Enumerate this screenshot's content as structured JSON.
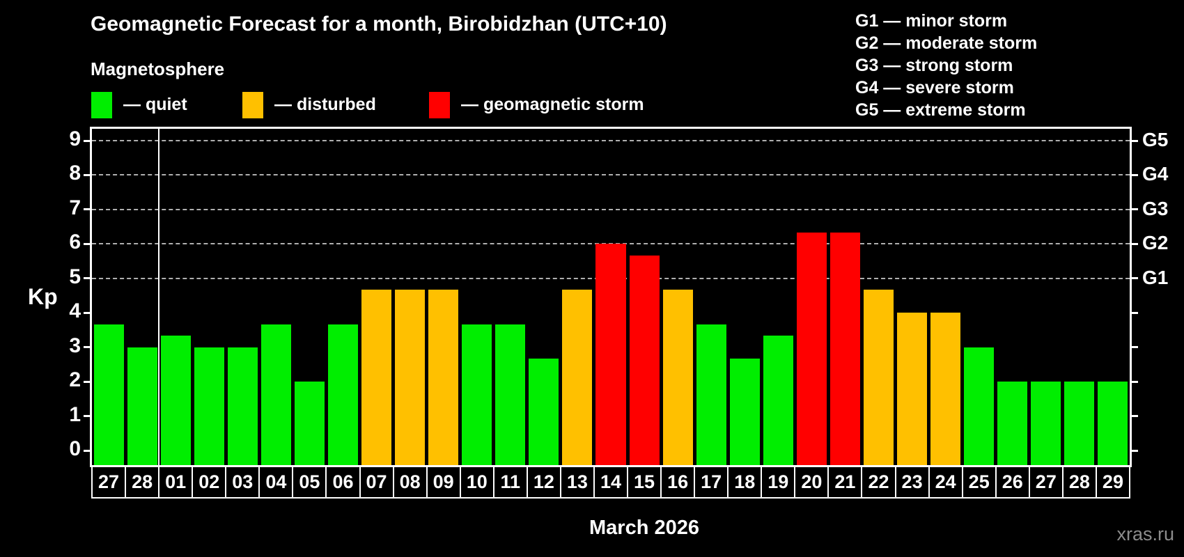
{
  "header": {
    "title": "Geomagnetic Forecast for a month, Birobidzhan (UTC+10)",
    "subtitle": "Magnetosphere"
  },
  "legend": {
    "items": [
      {
        "status": "quiet",
        "label": "— quiet",
        "color": "#00ee00"
      },
      {
        "status": "disturbed",
        "label": "— disturbed",
        "color": "#ffc000"
      },
      {
        "status": "storm",
        "label": "— geomagnetic storm",
        "color": "#ff0000"
      }
    ]
  },
  "storm_scale": {
    "lines": [
      "G1 — minor storm",
      "G2 — moderate storm",
      "G3 — strong storm",
      "G4 — severe storm",
      "G5 — extreme storm"
    ]
  },
  "axes": {
    "y_label": "Kp",
    "y_ticks": [
      0,
      1,
      2,
      3,
      4,
      5,
      6,
      7,
      8,
      9
    ],
    "right_labels": [
      {
        "kp": 5,
        "text": "G1"
      },
      {
        "kp": 6,
        "text": "G2"
      },
      {
        "kp": 7,
        "text": "G3"
      },
      {
        "kp": 8,
        "text": "G4"
      },
      {
        "kp": 9,
        "text": "G5"
      }
    ]
  },
  "footer": {
    "x_axis_title": "March 2026",
    "watermark": "xras.ru"
  },
  "chart_data": {
    "type": "bar",
    "title": "Geomagnetic Forecast for a month, Birobidzhan (UTC+10)",
    "xlabel": "March 2026",
    "ylabel": "Kp",
    "ylim": [
      0,
      9
    ],
    "grid": "dashed horizontal at Kp 5-9 only",
    "legend_position": "top",
    "categories": [
      "27",
      "28",
      "01",
      "02",
      "03",
      "04",
      "05",
      "06",
      "07",
      "08",
      "09",
      "10",
      "11",
      "12",
      "13",
      "14",
      "15",
      "16",
      "17",
      "18",
      "19",
      "20",
      "21",
      "22",
      "23",
      "24",
      "25",
      "26",
      "27",
      "28",
      "29"
    ],
    "values": [
      3.67,
      3.0,
      3.33,
      3.0,
      3.0,
      3.67,
      2.0,
      3.67,
      4.67,
      4.67,
      4.67,
      3.67,
      3.67,
      2.67,
      4.67,
      6.0,
      5.67,
      4.67,
      3.67,
      2.67,
      3.33,
      6.33,
      6.33,
      4.67,
      4.0,
      4.0,
      3.0,
      2.0,
      2.0,
      2.0,
      2.0
    ],
    "statuses": [
      "quiet",
      "quiet",
      "quiet",
      "quiet",
      "quiet",
      "quiet",
      "quiet",
      "quiet",
      "disturbed",
      "disturbed",
      "disturbed",
      "quiet",
      "quiet",
      "quiet",
      "disturbed",
      "storm",
      "storm",
      "disturbed",
      "quiet",
      "quiet",
      "quiet",
      "storm",
      "storm",
      "disturbed",
      "disturbed",
      "disturbed",
      "quiet",
      "quiet",
      "quiet",
      "quiet",
      "quiet"
    ],
    "colors": {
      "quiet": "#00ee00",
      "disturbed": "#ffc000",
      "storm": "#ff0000"
    },
    "gridlines_at": [
      5,
      6,
      7,
      8,
      9
    ],
    "month_separator_after_index": 1,
    "note": "first two bars are Feb 27-28, remaining bars are March 01-29"
  }
}
